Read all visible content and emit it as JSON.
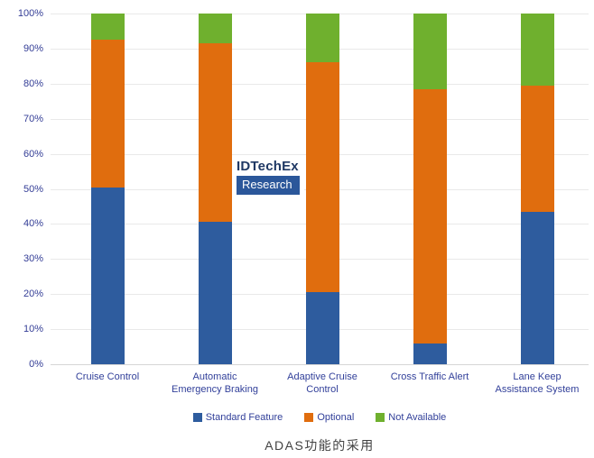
{
  "chart_data": {
    "type": "bar",
    "subtype": "stacked-percent-column",
    "title": "ADAS功能的采用",
    "xlabel": "",
    "ylabel": "",
    "ylim": [
      0,
      100
    ],
    "grid": true,
    "legend_position": "bottom",
    "y_ticks": [
      "0%",
      "10%",
      "20%",
      "30%",
      "40%",
      "50%",
      "60%",
      "70%",
      "80%",
      "90%",
      "100%"
    ],
    "categories": [
      "Cruise Control",
      "Automatic Emergency Braking",
      "Adaptive Cruise Control",
      "Cross Traffic Alert",
      "Lane Keep Assistance System"
    ],
    "category_label_lines": [
      [
        "Cruise Control"
      ],
      [
        "Automatic",
        "Emergency Braking"
      ],
      [
        "Adaptive Cruise",
        "Control"
      ],
      [
        "Cross Traffic Alert"
      ],
      [
        "Lane Keep",
        "Assistance System"
      ]
    ],
    "series": [
      {
        "name": "Standard Feature",
        "color": "#2e5c9e",
        "values": [
          50.5,
          40.5,
          20.5,
          6,
          43.5
        ]
      },
      {
        "name": "Optional",
        "color": "#e06d0e",
        "values": [
          42,
          51,
          65.5,
          72.5,
          36
        ]
      },
      {
        "name": "Not Available",
        "color": "#6fb02e",
        "values": [
          7.5,
          8.5,
          14,
          21.5,
          20.5
        ]
      }
    ]
  },
  "watermark": {
    "line1": "IDTechEx",
    "line2": "Research"
  },
  "caption": "ADAS功能的采用",
  "colors": {
    "standard_feature": "#2e5c9e",
    "optional": "#e06d0e",
    "not_available": "#6fb02e",
    "axis_text": "#333d96",
    "gridline": "#e9e9e9",
    "caption_text": "#424242",
    "watermark_text": "#1f3864",
    "watermark_box": "#2b579a"
  }
}
